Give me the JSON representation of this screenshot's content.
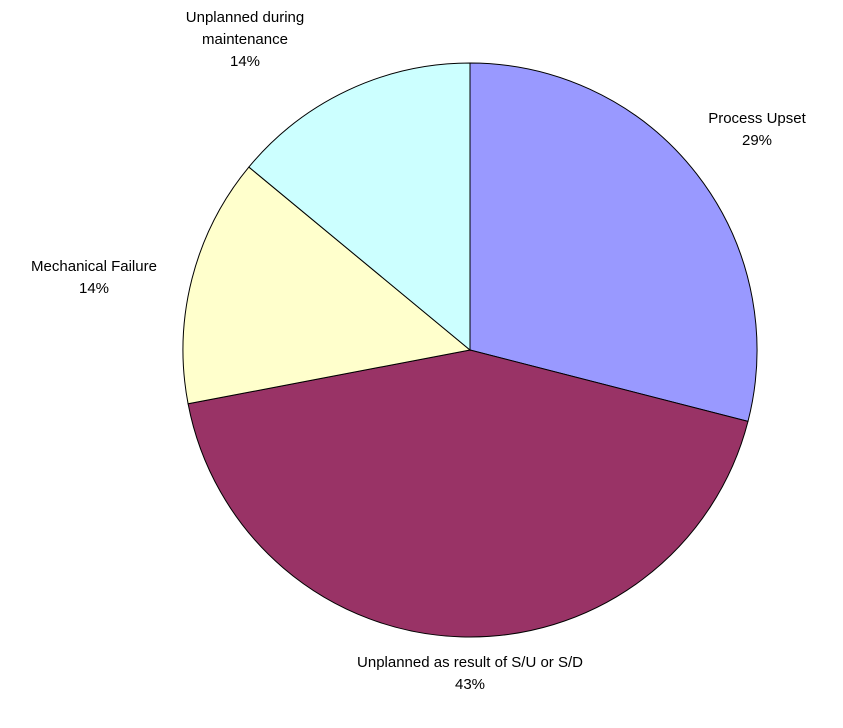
{
  "chart_data": {
    "type": "pie",
    "categories": [
      "Process Upset",
      "Unplanned as result of S/U or S/D",
      "Mechanical Failure",
      "Unplanned during maintenance"
    ],
    "values": [
      29,
      43,
      14,
      14
    ],
    "value_labels": [
      "29%",
      "43%",
      "14%",
      "14%"
    ],
    "colors": [
      "#9999ff",
      "#993366",
      "#ffffcc",
      "#ccffff"
    ]
  }
}
